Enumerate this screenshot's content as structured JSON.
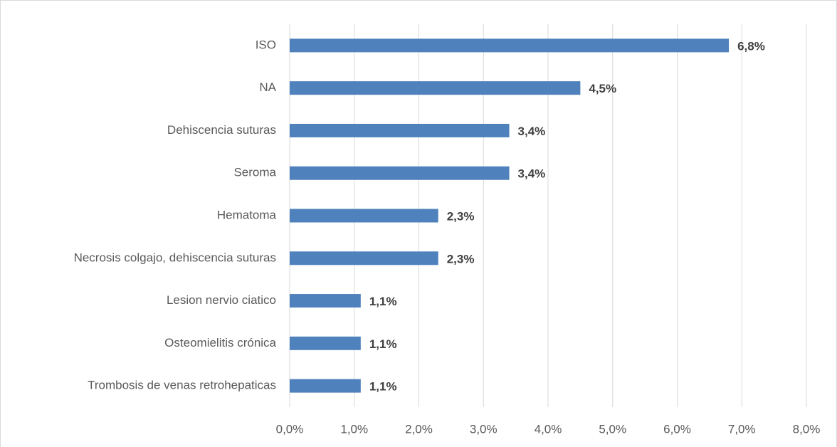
{
  "chart_data": {
    "type": "bar",
    "orientation": "horizontal",
    "categories": [
      "ISO",
      "NA",
      "Dehiscencia suturas ",
      "Seroma",
      "Hematoma",
      "Necrosis colgajo, dehiscencia suturas",
      "Lesion nervio ciatico ",
      "Osteomielitis crónica",
      "Trombosis de venas retrohepaticas"
    ],
    "values": [
      6.8,
      4.5,
      3.4,
      3.4,
      2.3,
      2.3,
      1.1,
      1.1,
      1.1
    ],
    "value_labels": [
      "6,8%",
      "4,5%",
      "3,4%",
      "3,4%",
      "2,3%",
      "2,3%",
      "1,1%",
      "1,1%",
      "1,1%"
    ],
    "color": "#4f81bd",
    "xlim": [
      0,
      8
    ],
    "xticks": [
      {
        "value": 0,
        "label": "0,0%"
      },
      {
        "value": 1,
        "label": "1,0%"
      },
      {
        "value": 2,
        "label": "2,0%"
      },
      {
        "value": 3,
        "label": "3,0%"
      },
      {
        "value": 4,
        "label": "4,0%"
      },
      {
        "value": 5,
        "label": "5,0%"
      },
      {
        "value": 6,
        "label": "6,0%"
      },
      {
        "value": 7,
        "label": "7,0%"
      },
      {
        "value": 8,
        "label": "8,0%"
      }
    ],
    "grid": true
  }
}
